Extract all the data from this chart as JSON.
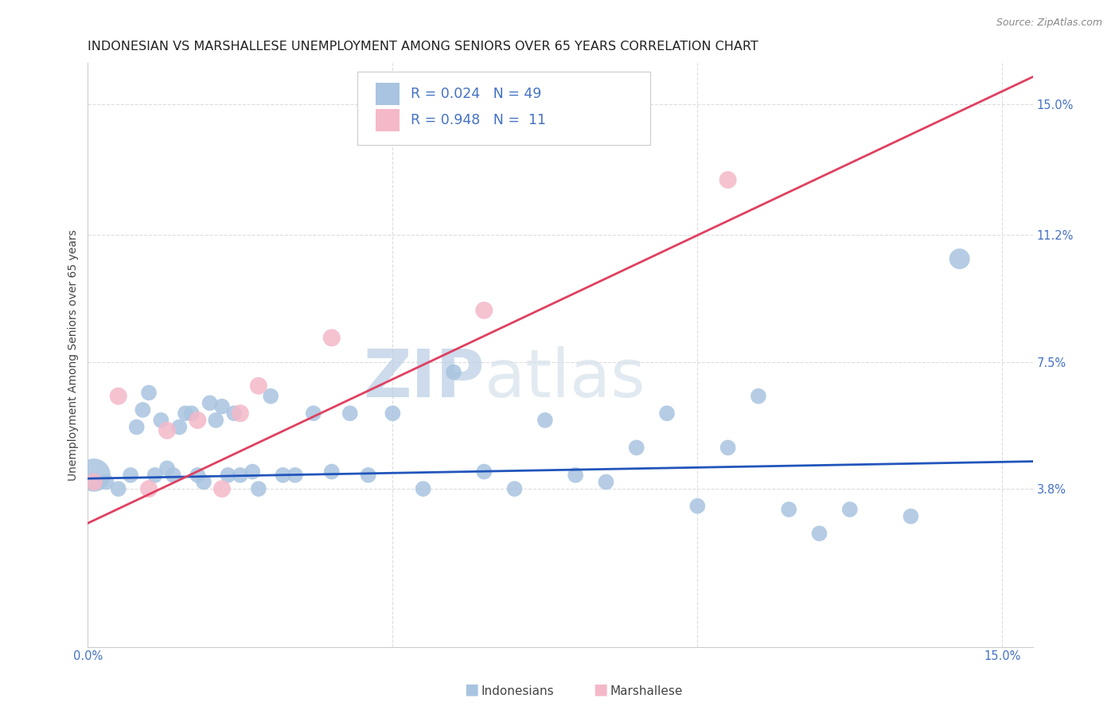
{
  "title": "INDONESIAN VS MARSHALLESE UNEMPLOYMENT AMONG SENIORS OVER 65 YEARS CORRELATION CHART",
  "source": "Source: ZipAtlas.com",
  "ylabel": "Unemployment Among Seniors over 65 years",
  "xlim": [
    0.0,
    0.155
  ],
  "ylim": [
    -0.008,
    0.162
  ],
  "ytick_vals": [
    0.038,
    0.075,
    0.112,
    0.15
  ],
  "ytick_labels": [
    "3.8%",
    "7.5%",
    "11.2%",
    "15.0%"
  ],
  "xtick_vals": [
    0.0,
    0.05,
    0.1,
    0.15
  ],
  "xtick_labels": [
    "0.0%",
    "",
    "",
    "15.0%"
  ],
  "indonesian_color": "#a8c4e0",
  "marshallese_color": "#f4b8c8",
  "indonesian_line_color": "#2255bb",
  "marshallese_line_color": "#e04060",
  "r_color": "#4472c4",
  "legend_r_indo": "R = 0.024",
  "legend_n_indo": "N = 49",
  "legend_r_marsh": "R = 0.948",
  "legend_n_marsh": "N =  11",
  "indo_x": [
    0.001,
    0.003,
    0.005,
    0.007,
    0.008,
    0.009,
    0.01,
    0.011,
    0.012,
    0.013,
    0.014,
    0.015,
    0.016,
    0.017,
    0.018,
    0.019,
    0.02,
    0.021,
    0.022,
    0.023,
    0.024,
    0.025,
    0.027,
    0.028,
    0.03,
    0.032,
    0.034,
    0.037,
    0.04,
    0.043,
    0.046,
    0.05,
    0.055,
    0.06,
    0.065,
    0.07,
    0.075,
    0.08,
    0.085,
    0.09,
    0.095,
    0.1,
    0.105,
    0.11,
    0.115,
    0.12,
    0.125,
    0.135,
    0.143
  ],
  "indo_y": [
    0.042,
    0.04,
    0.038,
    0.042,
    0.056,
    0.061,
    0.066,
    0.042,
    0.058,
    0.044,
    0.042,
    0.056,
    0.06,
    0.06,
    0.042,
    0.04,
    0.063,
    0.058,
    0.062,
    0.042,
    0.06,
    0.042,
    0.043,
    0.038,
    0.065,
    0.042,
    0.042,
    0.06,
    0.043,
    0.06,
    0.042,
    0.06,
    0.038,
    0.072,
    0.043,
    0.038,
    0.058,
    0.042,
    0.04,
    0.05,
    0.06,
    0.033,
    0.05,
    0.065,
    0.032,
    0.025,
    0.032,
    0.03,
    0.105
  ],
  "indo_sizes": [
    900,
    200,
    200,
    200,
    200,
    200,
    200,
    200,
    200,
    200,
    200,
    200,
    200,
    200,
    200,
    200,
    200,
    200,
    200,
    200,
    200,
    200,
    200,
    200,
    200,
    200,
    200,
    200,
    200,
    200,
    200,
    200,
    200,
    200,
    200,
    200,
    200,
    200,
    200,
    200,
    200,
    200,
    200,
    200,
    200,
    200,
    200,
    200,
    350
  ],
  "marsh_x": [
    0.001,
    0.005,
    0.01,
    0.013,
    0.018,
    0.022,
    0.025,
    0.028,
    0.04,
    0.065,
    0.105
  ],
  "marsh_y": [
    0.04,
    0.065,
    0.038,
    0.055,
    0.058,
    0.038,
    0.06,
    0.068,
    0.082,
    0.09,
    0.128
  ],
  "indo_trend_x": [
    0.0,
    0.155
  ],
  "indo_trend_y": [
    0.041,
    0.046
  ],
  "marsh_trend_x": [
    0.0,
    0.155
  ],
  "marsh_trend_y": [
    0.028,
    0.158
  ],
  "grid_color": "#dddddd",
  "watermark": "ZIPatlas",
  "watermark_color": "#ccd8e8",
  "title_fontsize": 11.5,
  "tick_fontsize": 10.5,
  "label_fontsize": 10
}
